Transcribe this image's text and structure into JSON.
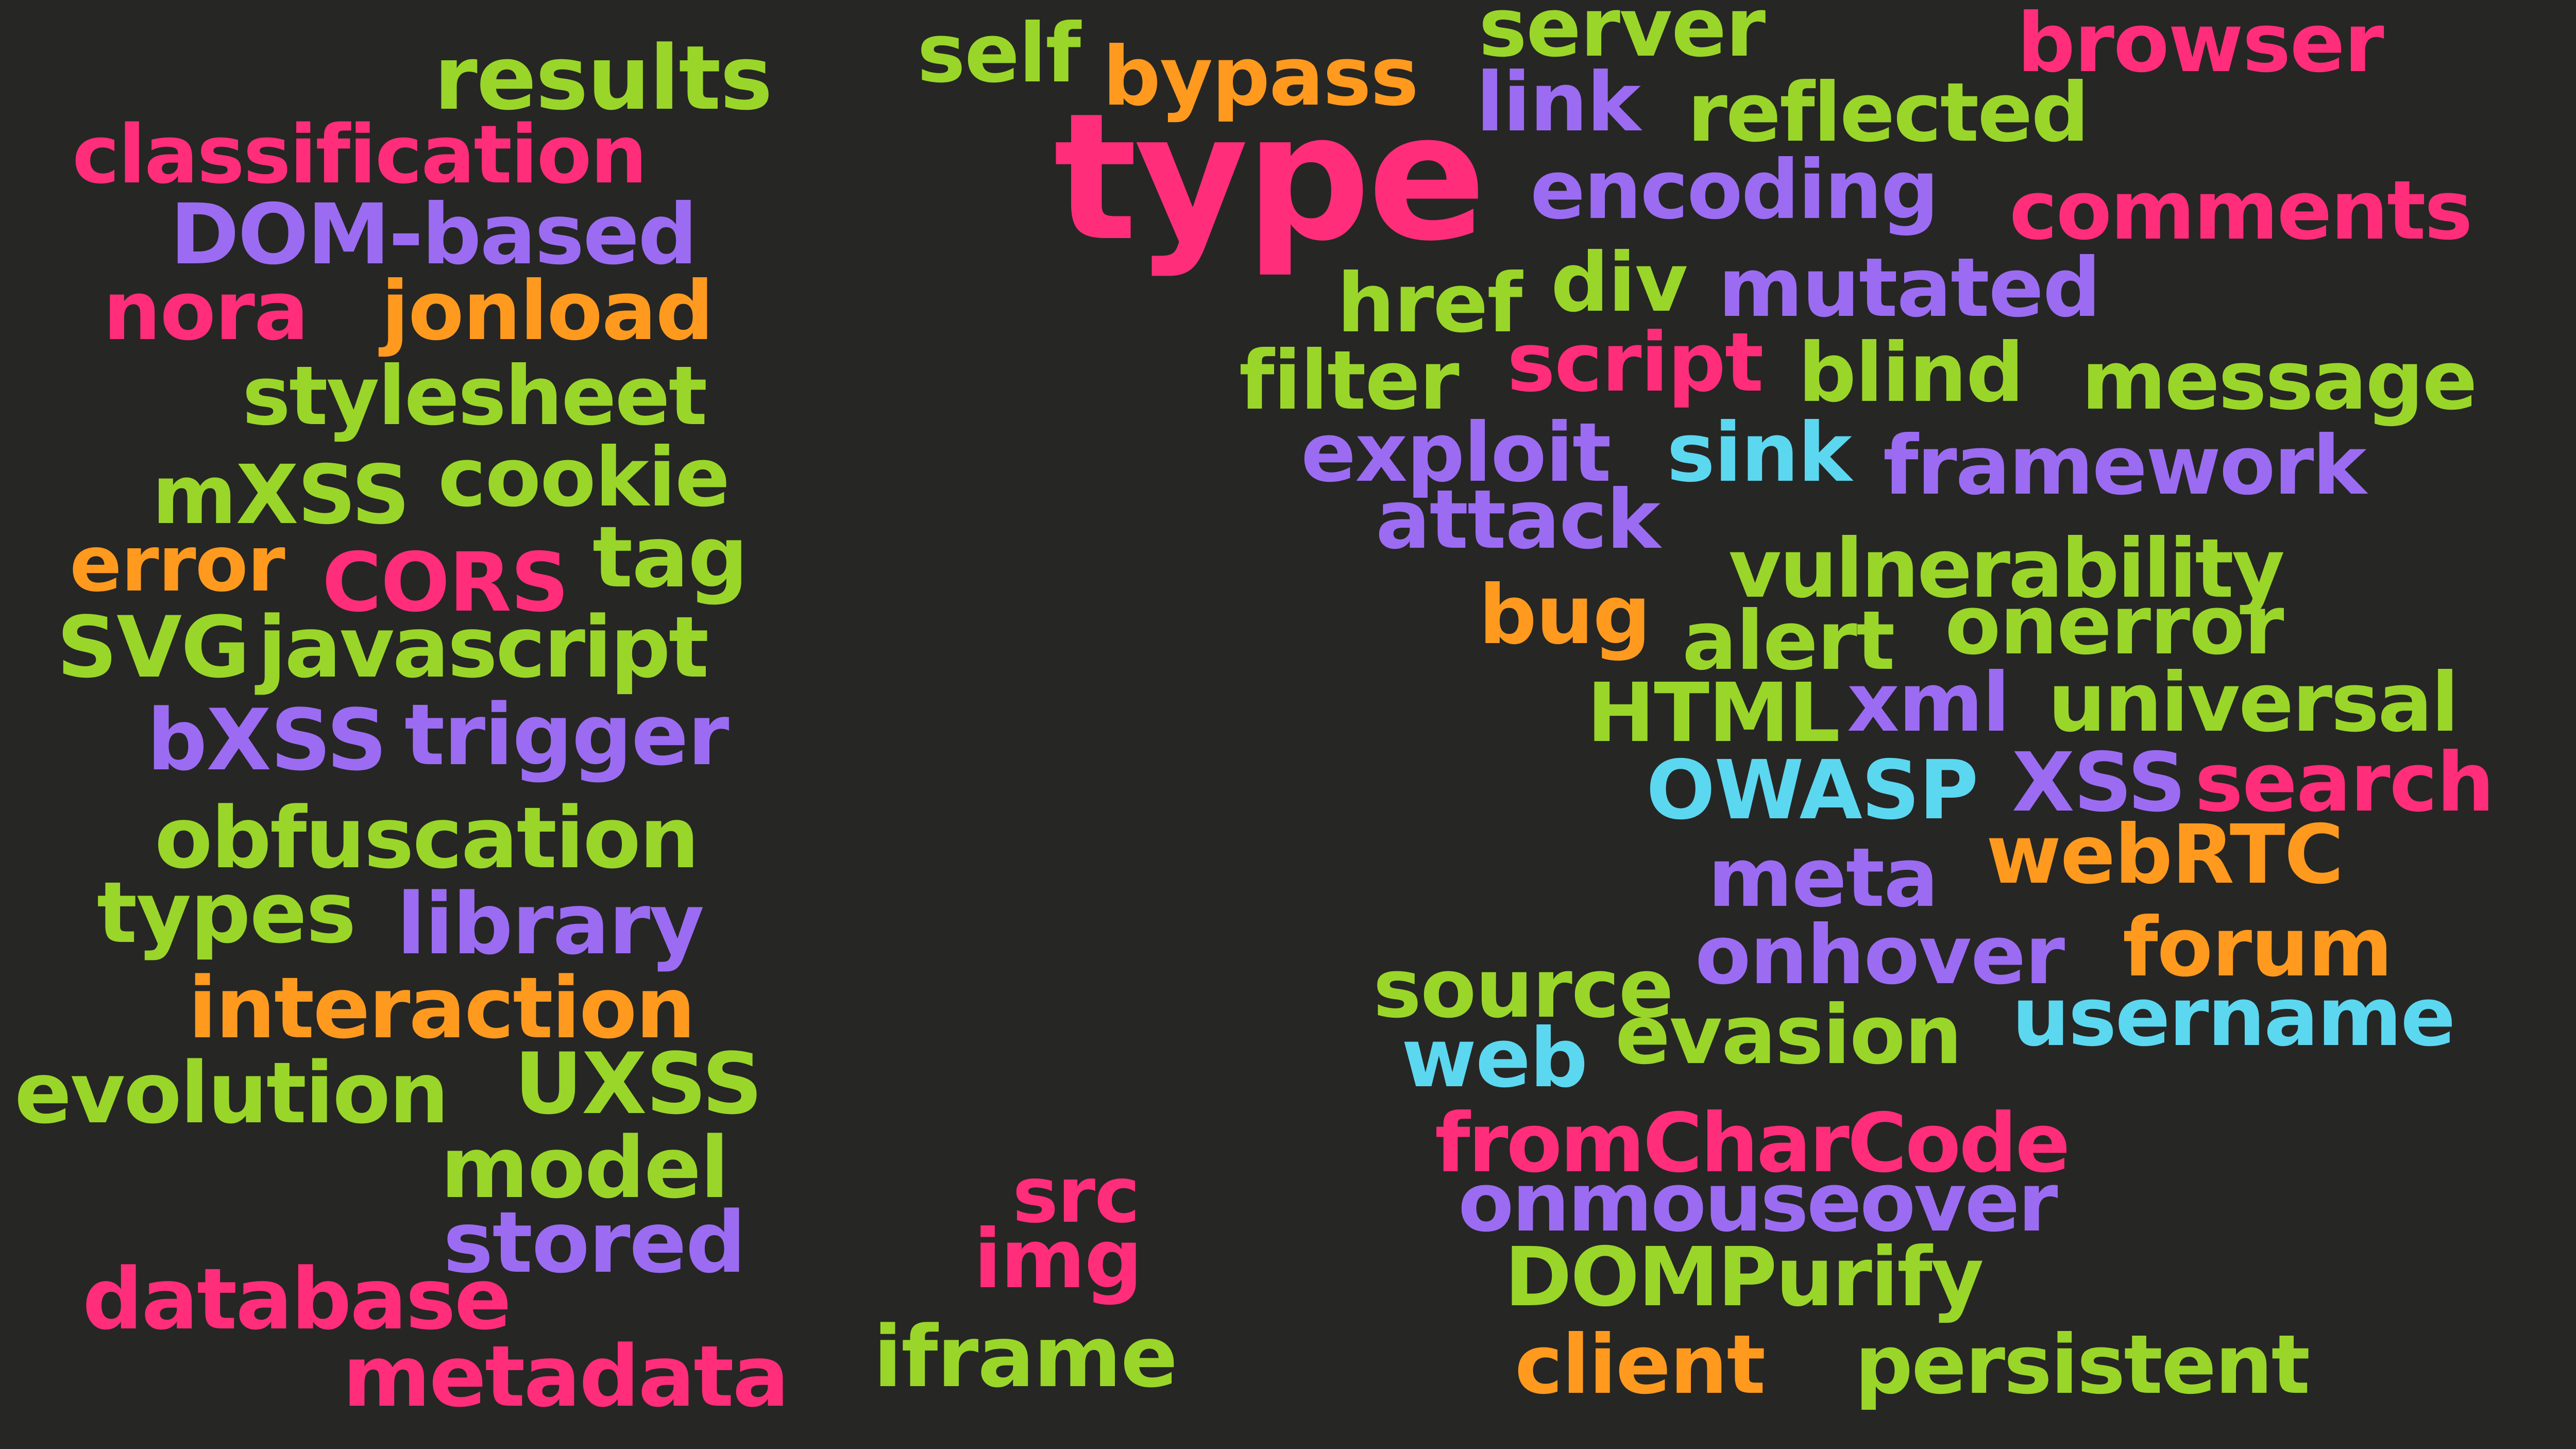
{
  "palette": {
    "background": "#262624",
    "green": "#9ad62a",
    "pink": "#ff2d7a",
    "purple": "#9b6cf2",
    "orange": "#ff9a1f",
    "cyan": "#5cd7f0"
  },
  "words": [
    {
      "text": "results",
      "color": "green"
    },
    {
      "text": "classification",
      "color": "pink"
    },
    {
      "text": "DOM-based",
      "color": "purple"
    },
    {
      "text": "nora",
      "color": "pink"
    },
    {
      "text": "jonload",
      "color": "orange"
    },
    {
      "text": "stylesheet",
      "color": "green"
    },
    {
      "text": "mXSS",
      "color": "green"
    },
    {
      "text": "cookie",
      "color": "green"
    },
    {
      "text": "error",
      "color": "orange"
    },
    {
      "text": "CORS",
      "color": "pink"
    },
    {
      "text": "tag",
      "color": "green"
    },
    {
      "text": "SVG",
      "color": "green"
    },
    {
      "text": "javascript",
      "color": "green"
    },
    {
      "text": "bXSS",
      "color": "purple"
    },
    {
      "text": "trigger",
      "color": "purple"
    },
    {
      "text": "obfuscation",
      "color": "green"
    },
    {
      "text": "types",
      "color": "green"
    },
    {
      "text": "library",
      "color": "purple"
    },
    {
      "text": "interaction",
      "color": "orange"
    },
    {
      "text": "evolution",
      "color": "green"
    },
    {
      "text": "UXSS",
      "color": "green"
    },
    {
      "text": "model",
      "color": "green"
    },
    {
      "text": "stored",
      "color": "purple"
    },
    {
      "text": "database",
      "color": "pink"
    },
    {
      "text": "metadata",
      "color": "pink"
    },
    {
      "text": "iframe",
      "color": "green"
    },
    {
      "text": "src",
      "color": "pink"
    },
    {
      "text": "img",
      "color": "pink"
    },
    {
      "text": "self",
      "color": "green"
    },
    {
      "text": "bypass",
      "color": "orange"
    },
    {
      "text": "server",
      "color": "green"
    },
    {
      "text": "link",
      "color": "purple"
    },
    {
      "text": "reflected",
      "color": "green"
    },
    {
      "text": "browser",
      "color": "pink"
    },
    {
      "text": "type",
      "color": "pink"
    },
    {
      "text": "encoding",
      "color": "purple"
    },
    {
      "text": "comments",
      "color": "pink"
    },
    {
      "text": "href",
      "color": "green"
    },
    {
      "text": "div",
      "color": "green"
    },
    {
      "text": "mutated",
      "color": "purple"
    },
    {
      "text": "filter",
      "color": "green"
    },
    {
      "text": "script",
      "color": "pink"
    },
    {
      "text": "blind",
      "color": "green"
    },
    {
      "text": "message",
      "color": "green"
    },
    {
      "text": "exploit",
      "color": "purple"
    },
    {
      "text": "sink",
      "color": "cyan"
    },
    {
      "text": "framework",
      "color": "purple"
    },
    {
      "text": "attack",
      "color": "purple"
    },
    {
      "text": "vulnerability",
      "color": "green"
    },
    {
      "text": "bug",
      "color": "orange"
    },
    {
      "text": "alert",
      "color": "green"
    },
    {
      "text": "onerror",
      "color": "green"
    },
    {
      "text": "HTML",
      "color": "green"
    },
    {
      "text": "xml",
      "color": "purple"
    },
    {
      "text": "universal",
      "color": "green"
    },
    {
      "text": "OWASP",
      "color": "cyan"
    },
    {
      "text": "XSS",
      "color": "purple"
    },
    {
      "text": "search",
      "color": "pink"
    },
    {
      "text": "meta",
      "color": "purple"
    },
    {
      "text": "webRTC",
      "color": "orange"
    },
    {
      "text": "source",
      "color": "green"
    },
    {
      "text": "onhover",
      "color": "purple"
    },
    {
      "text": "forum",
      "color": "orange"
    },
    {
      "text": "web",
      "color": "cyan"
    },
    {
      "text": "evasion",
      "color": "green"
    },
    {
      "text": "username",
      "color": "cyan"
    },
    {
      "text": "fromCharCode",
      "color": "pink"
    },
    {
      "text": "onmouseover",
      "color": "purple"
    },
    {
      "text": "DOMPurify",
      "color": "green"
    },
    {
      "text": "client",
      "color": "orange"
    },
    {
      "text": "persistent",
      "color": "green"
    }
  ]
}
